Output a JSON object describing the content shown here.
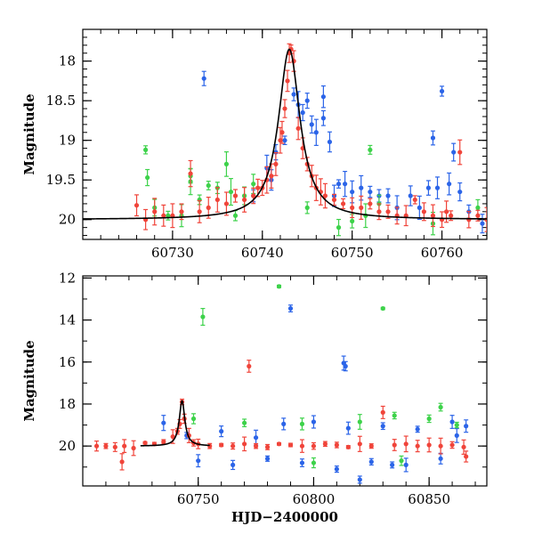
{
  "chart_data": [
    {
      "type": "scatter",
      "ylabel": "Magnitude",
      "xlim": [
        60720,
        60765
      ],
      "ylim": [
        20.25,
        17.6
      ],
      "y_inverted": true,
      "xticks": [
        60730,
        60740,
        60750,
        60760
      ],
      "xtick_minor_step": 2,
      "yticks": [
        18,
        18.5,
        19,
        19.5,
        20
      ],
      "ytick_labels": [
        "18",
        "18.5",
        "19",
        "19.5",
        "20"
      ],
      "ytick_minor_step": 0.1,
      "model_curve": {
        "peak_x": 60743,
        "peak_mag": 17.85,
        "base_mag": 20.0,
        "width": 1.45
      },
      "series": [
        {
          "color": "#2b64e8",
          "points": [
            [
              60733.5,
              18.22
            ],
            [
              60739,
              19.7
            ],
            [
              60740.5,
              19.35
            ],
            [
              60741.5,
              19.15
            ],
            [
              60741,
              19.5
            ],
            [
              60743.5,
              18.42
            ],
            [
              60744,
              18.55
            ],
            [
              60744.5,
              18.65
            ],
            [
              60745,
              18.5
            ],
            [
              60745.5,
              18.8
            ],
            [
              60746,
              18.9
            ],
            [
              60746.8,
              18.45
            ],
            [
              60746.8,
              18.72
            ],
            [
              60747.5,
              19.02
            ],
            [
              60748,
              19.7
            ],
            [
              60748.5,
              19.55
            ],
            [
              60749.2,
              19.55
            ],
            [
              60750,
              19.65
            ],
            [
              60751,
              19.6
            ],
            [
              60752,
              19.65
            ],
            [
              60753,
              19.7
            ],
            [
              60754,
              19.7
            ],
            [
              60755,
              19.85
            ],
            [
              60756.5,
              19.7
            ],
            [
              60757.5,
              19.85
            ],
            [
              60758.5,
              19.6
            ],
            [
              60759,
              18.97
            ],
            [
              60759.5,
              19.6
            ],
            [
              60760,
              18.38
            ],
            [
              60760.8,
              19.55
            ],
            [
              60761.3,
              19.15
            ],
            [
              60762,
              19.65
            ],
            [
              60763,
              19.9
            ],
            [
              60764.5,
              20.05
            ],
            [
              60742.5,
              19.0
            ]
          ]
        },
        {
          "color": "#3dd24a",
          "points": [
            [
              60727,
              19.12
            ],
            [
              60727.2,
              19.47
            ],
            [
              60728,
              19.85
            ],
            [
              60729.5,
              19.95
            ],
            [
              60731,
              19.95
            ],
            [
              60732,
              19.45
            ],
            [
              60732,
              19.52
            ],
            [
              60733,
              19.75
            ],
            [
              60734,
              19.57
            ],
            [
              60735,
              19.6
            ],
            [
              60736,
              19.3
            ],
            [
              60736.5,
              19.65
            ],
            [
              60737,
              19.95
            ],
            [
              60738,
              19.7
            ],
            [
              60739,
              19.55
            ],
            [
              60745,
              19.85
            ],
            [
              60748.5,
              20.1
            ],
            [
              60750,
              20.02
            ],
            [
              60751.5,
              19.95
            ],
            [
              60752,
              19.12
            ],
            [
              60753,
              19.8
            ],
            [
              60764,
              19.85
            ],
            [
              60759,
              20.05
            ]
          ]
        },
        {
          "color": "#f0443a",
          "points": [
            [
              60726,
              19.82
            ],
            [
              60727,
              20.0
            ],
            [
              60728,
              19.9
            ],
            [
              60729,
              19.95
            ],
            [
              60730,
              19.95
            ],
            [
              60731,
              19.9
            ],
            [
              60732,
              19.42
            ],
            [
              60733,
              19.9
            ],
            [
              60734,
              19.85
            ],
            [
              60735,
              19.75
            ],
            [
              60736,
              19.8
            ],
            [
              60737,
              19.7
            ],
            [
              60738,
              19.75
            ],
            [
              60739,
              19.7
            ],
            [
              60739.5,
              19.6
            ],
            [
              60740,
              19.6
            ],
            [
              60740.5,
              19.5
            ],
            [
              60741,
              19.45
            ],
            [
              60741.5,
              19.3
            ],
            [
              60742,
              19.0
            ],
            [
              60742.2,
              18.9
            ],
            [
              60742.5,
              18.6
            ],
            [
              60742.8,
              18.25
            ],
            [
              60743,
              17.9
            ],
            [
              60743.2,
              17.85
            ],
            [
              60743.5,
              18.0
            ],
            [
              60744,
              18.85
            ],
            [
              60744.5,
              19.1
            ],
            [
              60745,
              19.3
            ],
            [
              60745.5,
              19.45
            ],
            [
              60746,
              19.6
            ],
            [
              60746.5,
              19.65
            ],
            [
              60747,
              19.7
            ],
            [
              60748,
              19.75
            ],
            [
              60749,
              19.8
            ],
            [
              60750,
              19.85
            ],
            [
              60751,
              19.85
            ],
            [
              60752,
              19.8
            ],
            [
              60753,
              19.9
            ],
            [
              60754,
              19.9
            ],
            [
              60755,
              19.95
            ],
            [
              60756,
              19.95
            ],
            [
              60757,
              19.75
            ],
            [
              60758,
              19.9
            ],
            [
              60759,
              19.95
            ],
            [
              60760,
              20.0
            ],
            [
              60760.5,
              19.9
            ],
            [
              60761,
              19.95
            ],
            [
              60762,
              19.15
            ],
            [
              60763,
              20.0
            ],
            [
              60764,
              19.95
            ],
            [
              60765,
              20.0
            ]
          ]
        }
      ]
    },
    {
      "type": "scatter",
      "ylabel": "Magnitude",
      "xlabel": "HJD−2400000",
      "xlim": [
        60700,
        60875
      ],
      "ylim": [
        21.9,
        11.9
      ],
      "y_inverted": true,
      "xticks": [
        60750,
        60800,
        60850
      ],
      "xtick_minor_step": 10,
      "yticks": [
        12,
        14,
        16,
        18,
        20
      ],
      "ytick_labels": [
        "12",
        "14",
        "16",
        "18",
        "20"
      ],
      "ytick_minor_step": 1,
      "model_curve": {
        "peak_x": 60743,
        "peak_mag": 17.85,
        "base_mag": 20.0,
        "width": 1.45,
        "x_end": 60755
      },
      "series": [
        {
          "color": "#2b64e8",
          "points": [
            [
              60790,
              13.45
            ],
            [
              60813,
              16.05
            ],
            [
              60813.8,
              16.2
            ],
            [
              60735,
              18.9
            ],
            [
              60745,
              19.5
            ],
            [
              60760,
              19.3
            ],
            [
              60775,
              19.6
            ],
            [
              60787,
              18.95
            ],
            [
              60800,
              18.85
            ],
            [
              60815,
              19.15
            ],
            [
              60830,
              19.05
            ],
            [
              60845,
              19.2
            ],
            [
              60860,
              18.85
            ],
            [
              60866,
              19.05
            ],
            [
              60750,
              20.7
            ],
            [
              60765,
              20.9
            ],
            [
              60780,
              20.6
            ],
            [
              60795,
              20.8
            ],
            [
              60810,
              21.1
            ],
            [
              60825,
              20.75
            ],
            [
              60840,
              20.9
            ],
            [
              60855,
              20.6
            ],
            [
              60820,
              21.6
            ],
            [
              60834,
              20.9
            ],
            [
              60862,
              19.5
            ]
          ]
        },
        {
          "color": "#3dd24a",
          "points": [
            [
              60752,
              13.85
            ],
            [
              60785,
              12.4
            ],
            [
              60830,
              13.45
            ],
            [
              60748,
              18.7
            ],
            [
              60770,
              18.9
            ],
            [
              60795,
              18.95
            ],
            [
              60820,
              18.85
            ],
            [
              60835,
              18.55
            ],
            [
              60850,
              18.7
            ],
            [
              60855,
              18.15
            ],
            [
              60862,
              19.0
            ],
            [
              60800,
              20.8
            ],
            [
              60838,
              20.7
            ]
          ]
        },
        {
          "color": "#f0443a",
          "points": [
            [
              60772,
              16.2
            ],
            [
              60743,
              17.9
            ],
            [
              60706,
              20.0
            ],
            [
              60710,
              20.0
            ],
            [
              60714,
              20.05
            ],
            [
              60718,
              20.0
            ],
            [
              60722,
              20.1
            ],
            [
              60717,
              20.75
            ],
            [
              60727,
              19.85
            ],
            [
              60731,
              19.9
            ],
            [
              60735,
              19.8
            ],
            [
              60739,
              19.55
            ],
            [
              60741,
              19.3
            ],
            [
              60742,
              18.95
            ],
            [
              60744,
              18.7
            ],
            [
              60746,
              19.5
            ],
            [
              60748,
              19.85
            ],
            [
              60750,
              19.9
            ],
            [
              60755,
              20.0
            ],
            [
              60760,
              19.95
            ],
            [
              60765,
              20.0
            ],
            [
              60770,
              19.9
            ],
            [
              60775,
              20.0
            ],
            [
              60780,
              20.05
            ],
            [
              60785,
              19.9
            ],
            [
              60790,
              19.95
            ],
            [
              60795,
              20.0
            ],
            [
              60800,
              20.0
            ],
            [
              60805,
              19.9
            ],
            [
              60810,
              19.95
            ],
            [
              60815,
              20.05
            ],
            [
              60820,
              19.9
            ],
            [
              60825,
              20.0
            ],
            [
              60830,
              18.4
            ],
            [
              60835,
              19.95
            ],
            [
              60840,
              19.9
            ],
            [
              60845,
              20.0
            ],
            [
              60850,
              19.95
            ],
            [
              60855,
              20.0
            ],
            [
              60860,
              19.95
            ],
            [
              60865,
              20.05
            ],
            [
              60866,
              20.5
            ]
          ]
        }
      ]
    }
  ]
}
